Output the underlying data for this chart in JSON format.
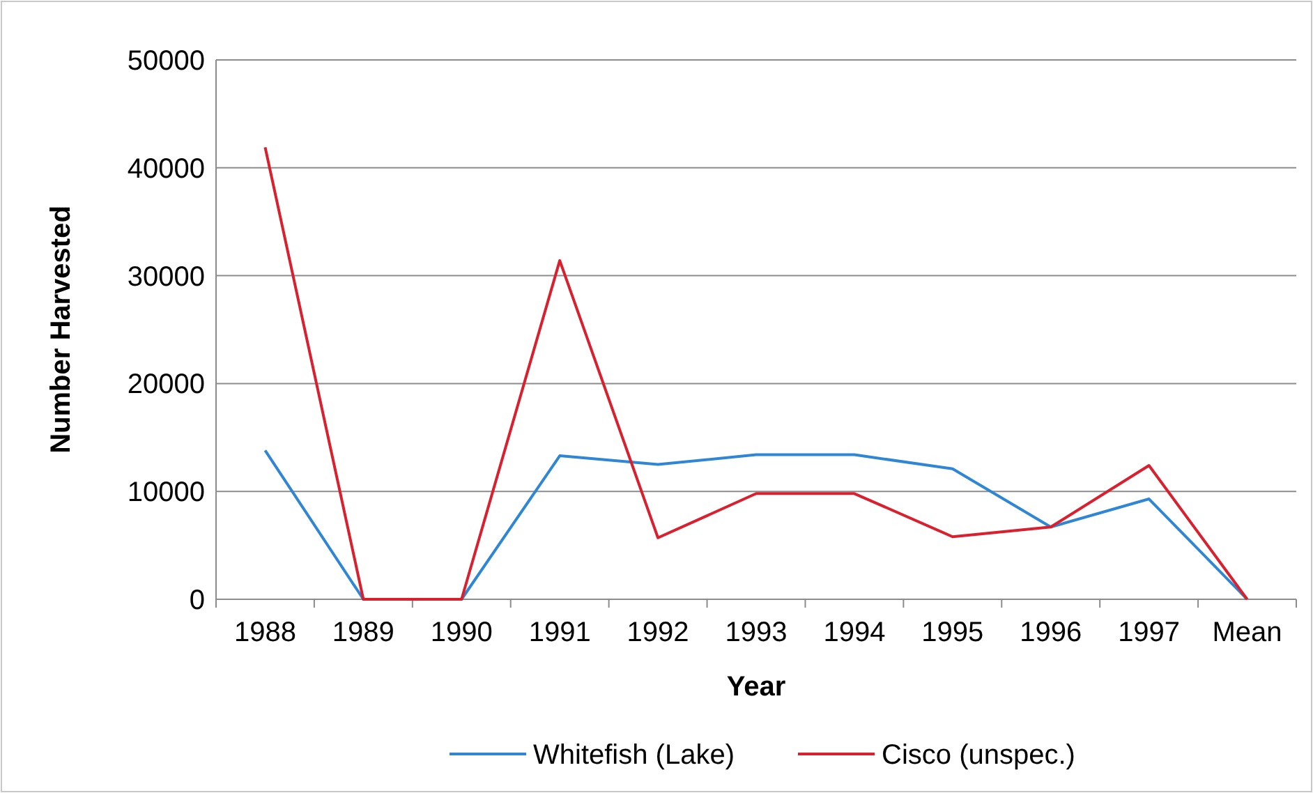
{
  "chart_data": {
    "type": "line",
    "xlabel": "Year",
    "ylabel": "Number Harvested",
    "categories": [
      "1988",
      "1989",
      "1990",
      "1991",
      "1992",
      "1993",
      "1994",
      "1995",
      "1996",
      "1997",
      "Mean"
    ],
    "series": [
      {
        "name": "Whitefish (Lake)",
        "color": "#2e86d4",
        "values": [
          13800,
          0,
          0,
          13300,
          12500,
          13400,
          13400,
          12100,
          6700,
          9300,
          0
        ]
      },
      {
        "name": "Cisco (unspec.)",
        "color": "#d8202e",
        "values": [
          41900,
          0,
          0,
          31400,
          5700,
          9800,
          9800,
          5800,
          6700,
          12400,
          0
        ]
      }
    ],
    "ylim": [
      0,
      50000
    ],
    "yticks": [
      0,
      10000,
      20000,
      30000,
      40000,
      50000
    ],
    "grid": "y",
    "legend": "bottom",
    "marker": "none",
    "line_style": "solid"
  }
}
